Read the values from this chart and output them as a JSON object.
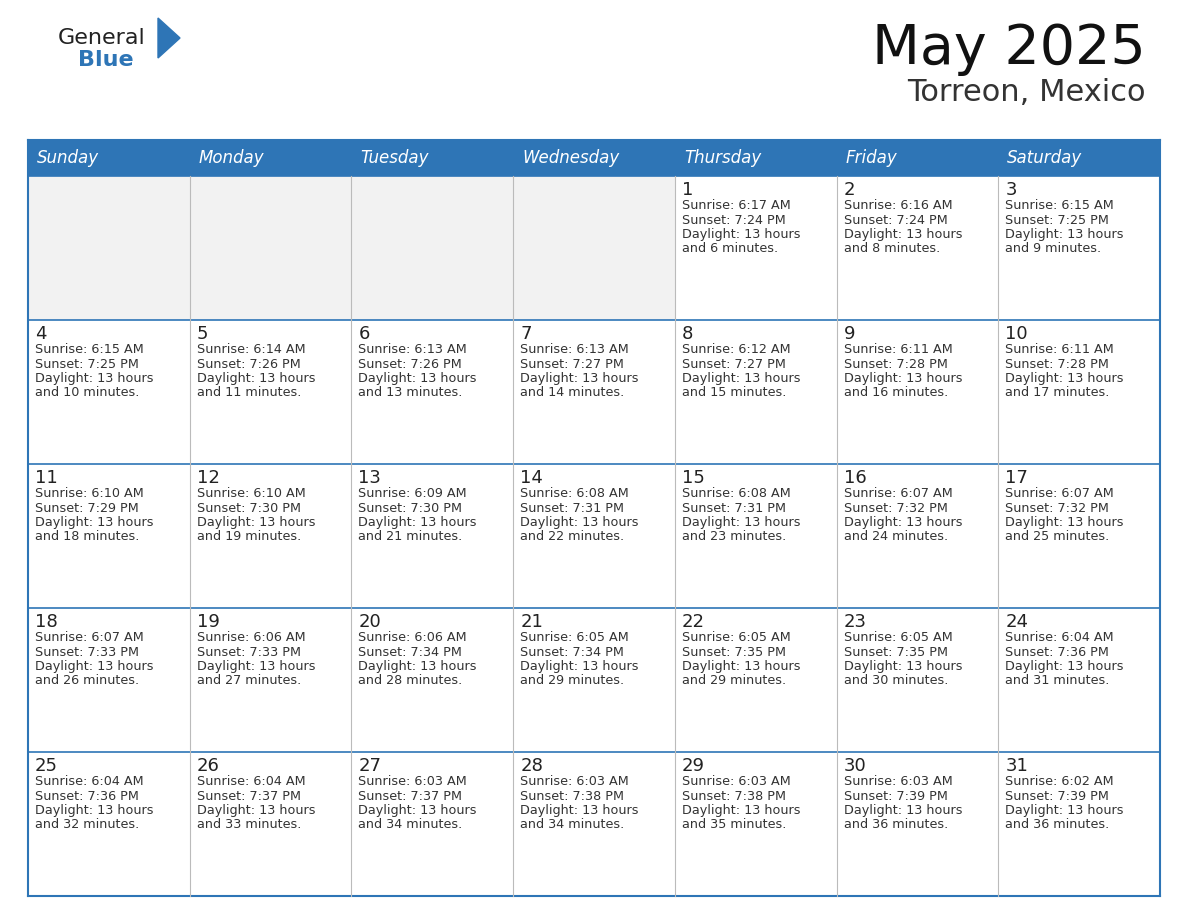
{
  "title": "May 2025",
  "subtitle": "Torreon, Mexico",
  "days_of_week": [
    "Sunday",
    "Monday",
    "Tuesday",
    "Wednesday",
    "Thursday",
    "Friday",
    "Saturday"
  ],
  "header_bg": "#2E75B6",
  "header_text": "#FFFFFF",
  "cell_bg_light": "#F2F2F2",
  "cell_bg_white": "#FFFFFF",
  "border_color": "#2E75B6",
  "day_num_color": "#222222",
  "content_color": "#333333",
  "title_color": "#111111",
  "subtitle_color": "#333333",
  "generalblue_black": "#222222",
  "generalblue_blue": "#2E75B6",
  "calendar_data": [
    [
      null,
      null,
      null,
      null,
      {
        "day": 1,
        "sunrise": "6:17 AM",
        "sunset": "7:24 PM",
        "daylight": "13 hours and 6 minutes."
      },
      {
        "day": 2,
        "sunrise": "6:16 AM",
        "sunset": "7:24 PM",
        "daylight": "13 hours and 8 minutes."
      },
      {
        "day": 3,
        "sunrise": "6:15 AM",
        "sunset": "7:25 PM",
        "daylight": "13 hours and 9 minutes."
      }
    ],
    [
      {
        "day": 4,
        "sunrise": "6:15 AM",
        "sunset": "7:25 PM",
        "daylight": "13 hours and 10 minutes."
      },
      {
        "day": 5,
        "sunrise": "6:14 AM",
        "sunset": "7:26 PM",
        "daylight": "13 hours and 11 minutes."
      },
      {
        "day": 6,
        "sunrise": "6:13 AM",
        "sunset": "7:26 PM",
        "daylight": "13 hours and 13 minutes."
      },
      {
        "day": 7,
        "sunrise": "6:13 AM",
        "sunset": "7:27 PM",
        "daylight": "13 hours and 14 minutes."
      },
      {
        "day": 8,
        "sunrise": "6:12 AM",
        "sunset": "7:27 PM",
        "daylight": "13 hours and 15 minutes."
      },
      {
        "day": 9,
        "sunrise": "6:11 AM",
        "sunset": "7:28 PM",
        "daylight": "13 hours and 16 minutes."
      },
      {
        "day": 10,
        "sunrise": "6:11 AM",
        "sunset": "7:28 PM",
        "daylight": "13 hours and 17 minutes."
      }
    ],
    [
      {
        "day": 11,
        "sunrise": "6:10 AM",
        "sunset": "7:29 PM",
        "daylight": "13 hours and 18 minutes."
      },
      {
        "day": 12,
        "sunrise": "6:10 AM",
        "sunset": "7:30 PM",
        "daylight": "13 hours and 19 minutes."
      },
      {
        "day": 13,
        "sunrise": "6:09 AM",
        "sunset": "7:30 PM",
        "daylight": "13 hours and 21 minutes."
      },
      {
        "day": 14,
        "sunrise": "6:08 AM",
        "sunset": "7:31 PM",
        "daylight": "13 hours and 22 minutes."
      },
      {
        "day": 15,
        "sunrise": "6:08 AM",
        "sunset": "7:31 PM",
        "daylight": "13 hours and 23 minutes."
      },
      {
        "day": 16,
        "sunrise": "6:07 AM",
        "sunset": "7:32 PM",
        "daylight": "13 hours and 24 minutes."
      },
      {
        "day": 17,
        "sunrise": "6:07 AM",
        "sunset": "7:32 PM",
        "daylight": "13 hours and 25 minutes."
      }
    ],
    [
      {
        "day": 18,
        "sunrise": "6:07 AM",
        "sunset": "7:33 PM",
        "daylight": "13 hours and 26 minutes."
      },
      {
        "day": 19,
        "sunrise": "6:06 AM",
        "sunset": "7:33 PM",
        "daylight": "13 hours and 27 minutes."
      },
      {
        "day": 20,
        "sunrise": "6:06 AM",
        "sunset": "7:34 PM",
        "daylight": "13 hours and 28 minutes."
      },
      {
        "day": 21,
        "sunrise": "6:05 AM",
        "sunset": "7:34 PM",
        "daylight": "13 hours and 29 minutes."
      },
      {
        "day": 22,
        "sunrise": "6:05 AM",
        "sunset": "7:35 PM",
        "daylight": "13 hours and 29 minutes."
      },
      {
        "day": 23,
        "sunrise": "6:05 AM",
        "sunset": "7:35 PM",
        "daylight": "13 hours and 30 minutes."
      },
      {
        "day": 24,
        "sunrise": "6:04 AM",
        "sunset": "7:36 PM",
        "daylight": "13 hours and 31 minutes."
      }
    ],
    [
      {
        "day": 25,
        "sunrise": "6:04 AM",
        "sunset": "7:36 PM",
        "daylight": "13 hours and 32 minutes."
      },
      {
        "day": 26,
        "sunrise": "6:04 AM",
        "sunset": "7:37 PM",
        "daylight": "13 hours and 33 minutes."
      },
      {
        "day": 27,
        "sunrise": "6:03 AM",
        "sunset": "7:37 PM",
        "daylight": "13 hours and 34 minutes."
      },
      {
        "day": 28,
        "sunrise": "6:03 AM",
        "sunset": "7:38 PM",
        "daylight": "13 hours and 34 minutes."
      },
      {
        "day": 29,
        "sunrise": "6:03 AM",
        "sunset": "7:38 PM",
        "daylight": "13 hours and 35 minutes."
      },
      {
        "day": 30,
        "sunrise": "6:03 AM",
        "sunset": "7:39 PM",
        "daylight": "13 hours and 36 minutes."
      },
      {
        "day": 31,
        "sunrise": "6:02 AM",
        "sunset": "7:39 PM",
        "daylight": "13 hours and 36 minutes."
      }
    ]
  ]
}
